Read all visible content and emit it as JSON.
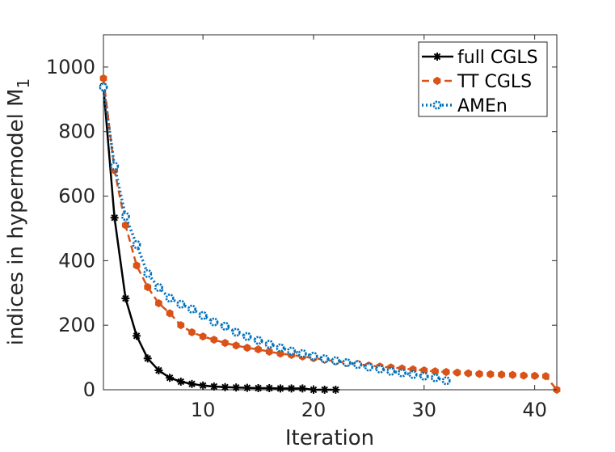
{
  "chart_data": {
    "type": "line",
    "title": "",
    "xlabel": "Iteration",
    "ylabel": "indices in hypermodel M",
    "ylabel_subscript": "1",
    "xlim": [
      1,
      42
    ],
    "ylim": [
      0,
      1100
    ],
    "xticks": [
      10,
      20,
      30,
      40
    ],
    "yticks": [
      0,
      200,
      400,
      600,
      800,
      1000
    ],
    "grid": false,
    "legend_position": "top-right",
    "series": [
      {
        "name": "full CGLS",
        "color": "#000000",
        "line_style": "solid",
        "marker": "asterisk",
        "x": [
          1,
          2,
          3,
          4,
          5,
          6,
          7,
          8,
          9,
          10,
          11,
          12,
          13,
          14,
          15,
          16,
          17,
          18,
          19,
          20,
          21,
          22
        ],
        "y": [
          940,
          533,
          283,
          167,
          97,
          60,
          37,
          25,
          18,
          13,
          10,
          8,
          7,
          6,
          5,
          5,
          4,
          4,
          4,
          0,
          0,
          0
        ]
      },
      {
        "name": "TT CGLS",
        "color": "#D95319",
        "line_style": "dashed",
        "marker": "filled-hexagon",
        "x": [
          1,
          2,
          3,
          4,
          5,
          6,
          7,
          8,
          9,
          10,
          11,
          12,
          13,
          14,
          15,
          16,
          17,
          18,
          19,
          20,
          21,
          22,
          23,
          24,
          25,
          26,
          27,
          28,
          29,
          30,
          31,
          32,
          33,
          34,
          35,
          36,
          37,
          38,
          39,
          40,
          41,
          42
        ],
        "y": [
          965,
          680,
          510,
          385,
          318,
          268,
          237,
          200,
          178,
          165,
          155,
          145,
          137,
          130,
          125,
          118,
          112,
          108,
          103,
          98,
          93,
          88,
          83,
          80,
          75,
          72,
          69,
          66,
          63,
          60,
          57,
          55,
          53,
          51,
          49,
          48,
          47,
          46,
          44,
          43,
          42,
          0
        ]
      },
      {
        "name": "AMEn",
        "color": "#0072BD",
        "line_style": "dotted",
        "marker": "open-circle",
        "x": [
          1,
          2,
          3,
          4,
          5,
          6,
          7,
          8,
          9,
          10,
          11,
          12,
          13,
          14,
          15,
          16,
          17,
          18,
          19,
          20,
          21,
          22,
          23,
          24,
          25,
          26,
          27,
          28,
          29,
          30,
          31,
          32
        ],
        "y": [
          938,
          693,
          537,
          450,
          360,
          317,
          284,
          265,
          250,
          230,
          210,
          197,
          178,
          165,
          153,
          141,
          130,
          120,
          112,
          104,
          96,
          90,
          84,
          78,
          70,
          64,
          57,
          52,
          47,
          42,
          37,
          28
        ]
      }
    ]
  }
}
